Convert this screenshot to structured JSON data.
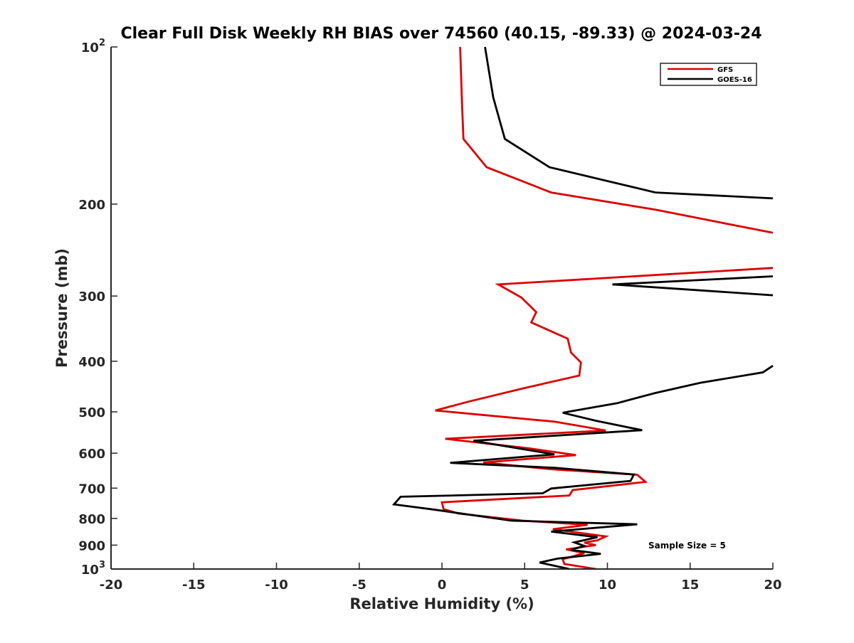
{
  "chart_data": {
    "type": "line",
    "title": "Clear Full Disk Weekly RH BIAS over 74560 (40.15, -89.33) @ 2024-03-24",
    "xlabel": "Relative Humidity (%)",
    "ylabel": "Pressure (mb)",
    "xlim": [
      -20,
      20
    ],
    "ylim": [
      100,
      1000
    ],
    "y_scale": "log",
    "y_reversed": true,
    "grid": false,
    "legend_position": "top-right",
    "x_ticks": [
      {
        "value": -20,
        "label": "-20"
      },
      {
        "value": -15,
        "label": "-15"
      },
      {
        "value": -10,
        "label": "-10"
      },
      {
        "value": -5,
        "label": "-5"
      },
      {
        "value": 0,
        "label": "0"
      },
      {
        "value": 5,
        "label": "5"
      },
      {
        "value": 10,
        "label": "10"
      },
      {
        "value": 15,
        "label": "15"
      },
      {
        "value": 20,
        "label": "20"
      }
    ],
    "y_ticks": [
      {
        "value": 100,
        "label": "10",
        "sup": "2"
      },
      {
        "value": 200,
        "label": "200",
        "sup": ""
      },
      {
        "value": 300,
        "label": "300",
        "sup": ""
      },
      {
        "value": 400,
        "label": "400",
        "sup": ""
      },
      {
        "value": 500,
        "label": "500",
        "sup": ""
      },
      {
        "value": 600,
        "label": "600",
        "sup": ""
      },
      {
        "value": 700,
        "label": "700",
        "sup": ""
      },
      {
        "value": 800,
        "label": "800",
        "sup": ""
      },
      {
        "value": 900,
        "label": "900",
        "sup": ""
      },
      {
        "value": 1000,
        "label": "10",
        "sup": "3"
      }
    ],
    "annotation": "Sample Size = 5",
    "series": [
      {
        "name": "GFS",
        "color": "#dd0000",
        "points": [
          [
            1.1,
            100
          ],
          [
            1.2,
            125
          ],
          [
            1.3,
            150
          ],
          [
            2.7,
            170
          ],
          [
            6.6,
            190
          ],
          [
            12.9,
            205
          ],
          [
            20,
            227
          ],
          [
            null,
            null
          ],
          [
            20,
            265
          ],
          [
            3.4,
            285
          ],
          [
            4.8,
            302
          ],
          [
            5.7,
            322
          ],
          [
            5.4,
            337
          ],
          [
            7.6,
            362
          ],
          [
            7.8,
            385
          ],
          [
            8.4,
            402
          ],
          [
            8.3,
            426
          ],
          [
            5.0,
            450
          ],
          [
            1.6,
            478
          ],
          [
            -0.4,
            497
          ],
          [
            6.8,
            522
          ],
          [
            9.9,
            543
          ],
          [
            0.2,
            563
          ],
          [
            5.2,
            587
          ],
          [
            8.1,
            605
          ],
          [
            2.5,
            625
          ],
          [
            6.6,
            644
          ],
          [
            11.8,
            660
          ],
          [
            12.3,
            681
          ],
          [
            7.9,
            706
          ],
          [
            7.7,
            723
          ],
          [
            0.0,
            745
          ],
          [
            0.1,
            768
          ],
          [
            1.0,
            783
          ],
          [
            4.9,
            808
          ],
          [
            8.8,
            823
          ],
          [
            6.7,
            839
          ],
          [
            9.9,
            866
          ],
          [
            9.4,
            881
          ],
          [
            8.6,
            890
          ],
          [
            9.3,
            900
          ],
          [
            7.5,
            917
          ],
          [
            8.6,
            932
          ],
          [
            7.3,
            958
          ],
          [
            7.4,
            978
          ],
          [
            9.3,
            1000
          ]
        ]
      },
      {
        "name": "GOES-16",
        "color": "#000000",
        "points": [
          [
            2.6,
            100
          ],
          [
            3.1,
            125
          ],
          [
            3.8,
            150
          ],
          [
            6.5,
            170
          ],
          [
            12.9,
            190
          ],
          [
            20,
            195
          ],
          [
            null,
            null
          ],
          [
            20,
            275
          ],
          [
            10.3,
            285
          ],
          [
            20,
            299
          ],
          [
            null,
            null
          ],
          [
            20,
            408
          ],
          [
            19.4,
            420
          ],
          [
            15.6,
            440
          ],
          [
            12.9,
            460
          ],
          [
            10.6,
            481
          ],
          [
            7.3,
            502
          ],
          [
            9.3,
            520
          ],
          [
            12.1,
            542
          ],
          [
            1.9,
            568
          ],
          [
            4.3,
            585
          ],
          [
            6.8,
            603
          ],
          [
            5.4,
            608
          ],
          [
            0.5,
            626
          ],
          [
            6.8,
            640
          ],
          [
            11.6,
            659
          ],
          [
            11.4,
            678
          ],
          [
            6.6,
            701
          ],
          [
            6.1,
            716
          ],
          [
            -2.5,
            727
          ],
          [
            -2.9,
            752
          ],
          [
            -0.4,
            770
          ],
          [
            4.2,
            808
          ],
          [
            11.8,
            821
          ],
          [
            6.6,
            848
          ],
          [
            9.4,
            869
          ],
          [
            8.0,
            889
          ],
          [
            8.6,
            903
          ],
          [
            7.8,
            919
          ],
          [
            9.6,
            935
          ],
          [
            7.0,
            955
          ],
          [
            5.9,
            972
          ],
          [
            7.7,
            1000
          ]
        ]
      }
    ]
  }
}
